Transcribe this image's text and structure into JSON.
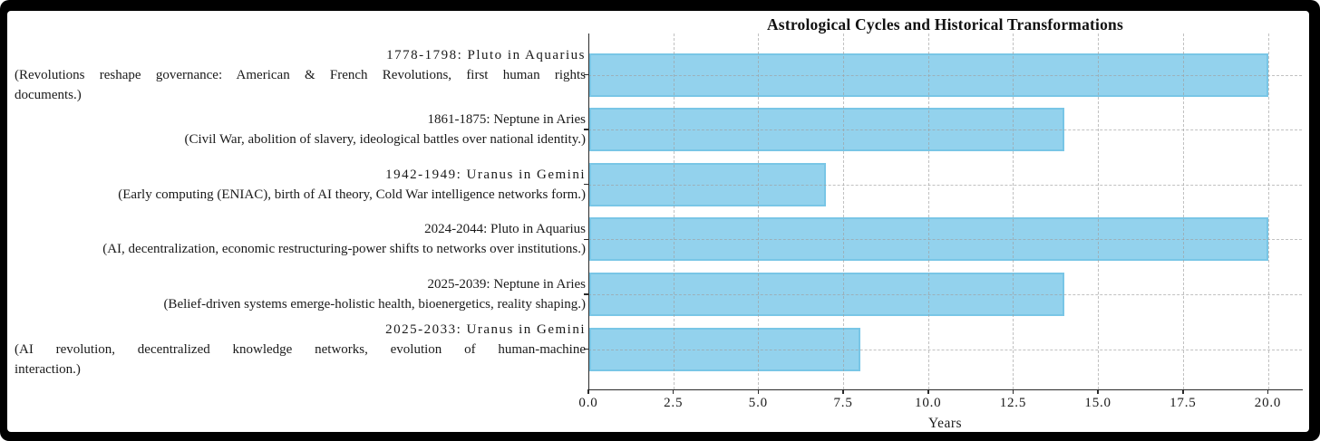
{
  "figure": {
    "title": "Astrological Cycles and Historical Transformations",
    "xlabel": "Years",
    "bar_fill_color": "#93D2ED",
    "bar_edge_color": "#79C6E6",
    "grid_color": "#A0A0A0",
    "spine_color": "#2A2A2A",
    "text_color": "#1A1A1A",
    "frame_color": "#000000",
    "background_color": "#FFFFFF"
  },
  "chart_data": {
    "type": "bar",
    "orientation": "horizontal",
    "title": "Astrological Cycles and Historical Transformations",
    "xlabel": "Years",
    "ylabel": "",
    "xlim": [
      0,
      21
    ],
    "xticks": [
      0.0,
      2.5,
      5.0,
      7.5,
      10.0,
      12.5,
      15.0,
      17.5,
      20.0
    ],
    "xtick_labels": [
      "0.0",
      "2.5",
      "5.0",
      "7.5",
      "10.0",
      "12.5",
      "15.0",
      "17.5",
      "20.0"
    ],
    "grid": "both axes, dashed, drawn over bars",
    "legend": "none",
    "categories": [
      "1778-1798: Pluto in Aquarius",
      "1861-1875: Neptune in Aries",
      "1942-1949: Uranus in Gemini",
      "2024-2044: Pluto in Aquarius",
      "2025-2039: Neptune in Aries",
      "2025-2033: Uranus in Gemini"
    ],
    "values": [
      20,
      14,
      7,
      20,
      14,
      8
    ],
    "bars": [
      {
        "heading": "1778-1798: Pluto in Aquarius",
        "heading_spaced": true,
        "value": 20,
        "desc_lines": [
          {
            "text": "(Revolutions reshape governance: American & French Revolutions, first human rights",
            "align": "justify"
          },
          {
            "text": "documents.)",
            "align": "left"
          }
        ]
      },
      {
        "heading": "1861-1875: Neptune in Aries",
        "heading_spaced": false,
        "value": 14,
        "desc_lines": [
          {
            "text": "(Civil War, abolition of slavery, ideological battles over national identity.)",
            "align": "right"
          }
        ]
      },
      {
        "heading": "1942-1949: Uranus in Gemini",
        "heading_spaced": true,
        "value": 7,
        "desc_lines": [
          {
            "text": "(Early computing (ENIAC), birth of AI theory, Cold War intelligence networks form.)",
            "align": "right"
          }
        ]
      },
      {
        "heading": "2024-2044: Pluto in Aquarius",
        "heading_spaced": false,
        "value": 20,
        "desc_lines": [
          {
            "text": "(AI, decentralization, economic restructuring-power shifts to networks over institutions.)",
            "align": "right"
          }
        ]
      },
      {
        "heading": "2025-2039: Neptune in Aries",
        "heading_spaced": false,
        "value": 14,
        "desc_lines": [
          {
            "text": "(Belief-driven systems emerge-holistic health, bioenergetics, reality shaping.)",
            "align": "right"
          }
        ]
      },
      {
        "heading": "2025-2033: Uranus in Gemini",
        "heading_spaced": true,
        "value": 8,
        "desc_lines": [
          {
            "text": "(AI revolution, decentralized knowledge networks, evolution of human-machine",
            "align": "justify"
          },
          {
            "text": "interaction.)",
            "align": "left"
          }
        ]
      }
    ]
  }
}
